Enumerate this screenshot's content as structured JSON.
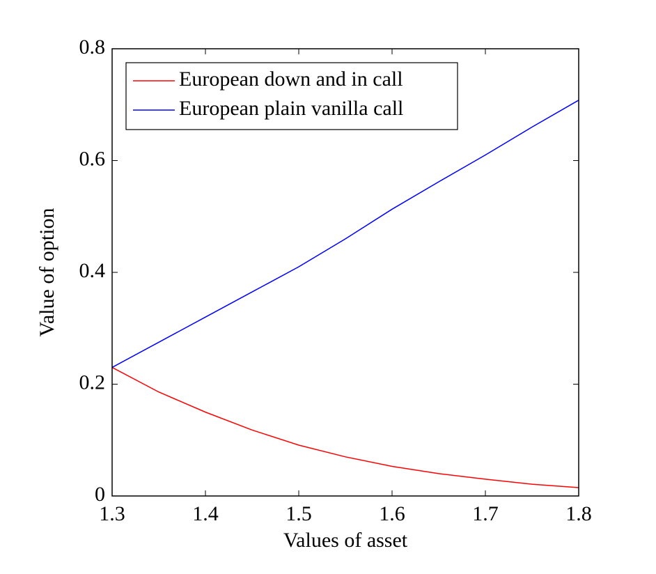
{
  "chart_data": {
    "type": "line",
    "xlabel": "Values of asset",
    "ylabel": "Value of option",
    "x": [
      1.3,
      1.35,
      1.4,
      1.45,
      1.5,
      1.55,
      1.6,
      1.65,
      1.7,
      1.75,
      1.8
    ],
    "series": [
      {
        "name": "European down and in call",
        "color": "#ff0000",
        "values": [
          0.23,
          0.186,
          0.15,
          0.118,
          0.091,
          0.07,
          0.053,
          0.04,
          0.03,
          0.021,
          0.015
        ]
      },
      {
        "name": "European plain vanilla call",
        "color": "#0000ff",
        "values": [
          0.23,
          0.275,
          0.32,
          0.365,
          0.41,
          0.46,
          0.513,
          0.562,
          0.61,
          0.66,
          0.708
        ]
      }
    ],
    "xlim": [
      1.3,
      1.8
    ],
    "ylim": [
      0,
      0.8
    ],
    "xticks": [
      1.3,
      1.4,
      1.5,
      1.6,
      1.7,
      1.8
    ],
    "yticks": [
      0,
      0.2,
      0.4,
      0.6,
      0.8
    ],
    "legend": "upper left"
  }
}
